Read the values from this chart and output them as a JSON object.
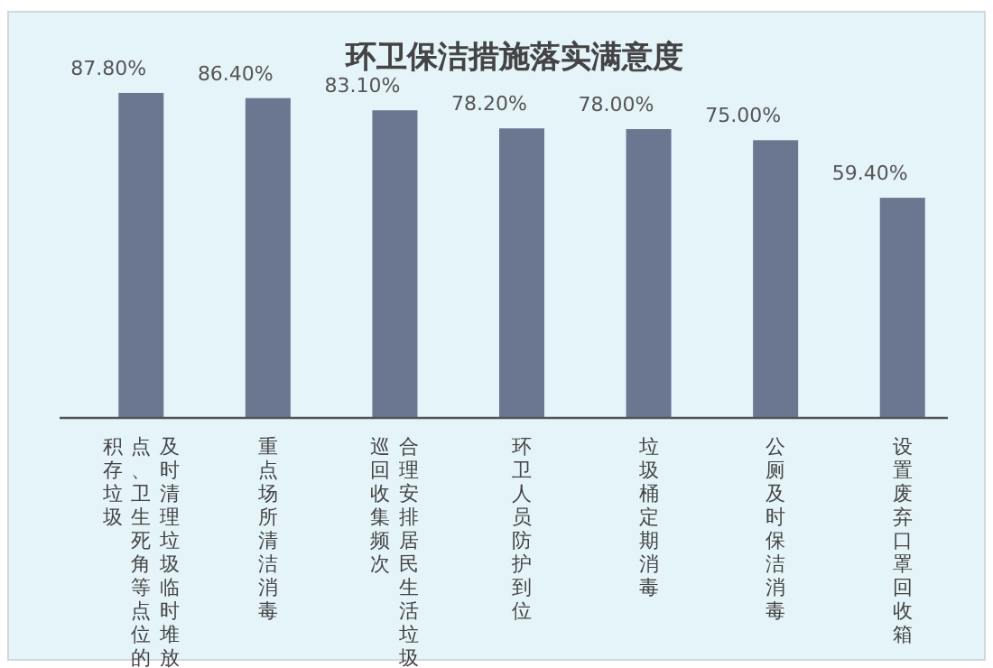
{
  "chart_data": {
    "type": "bar",
    "title": "环卫保洁措施落实满意度",
    "categories": [
      "及时清理垃圾临时堆放点、卫生死角等点位的积存垃圾",
      "重点场所清洁消毒",
      "合理安排居民生活垃圾巡回收集频次",
      "环卫人员防护到位",
      "垃圾桶定期消毒",
      "公厕及时保洁消毒",
      "设置废弃口罩回收箱"
    ],
    "values": [
      87.8,
      86.4,
      83.1,
      78.2,
      78.0,
      75.0,
      59.4
    ],
    "value_labels": [
      "87.80%",
      "86.40%",
      "83.10%",
      "78.20%",
      "78.00%",
      "75.00%",
      "59.40%"
    ],
    "color": "#6b7690",
    "relative": false
  }
}
